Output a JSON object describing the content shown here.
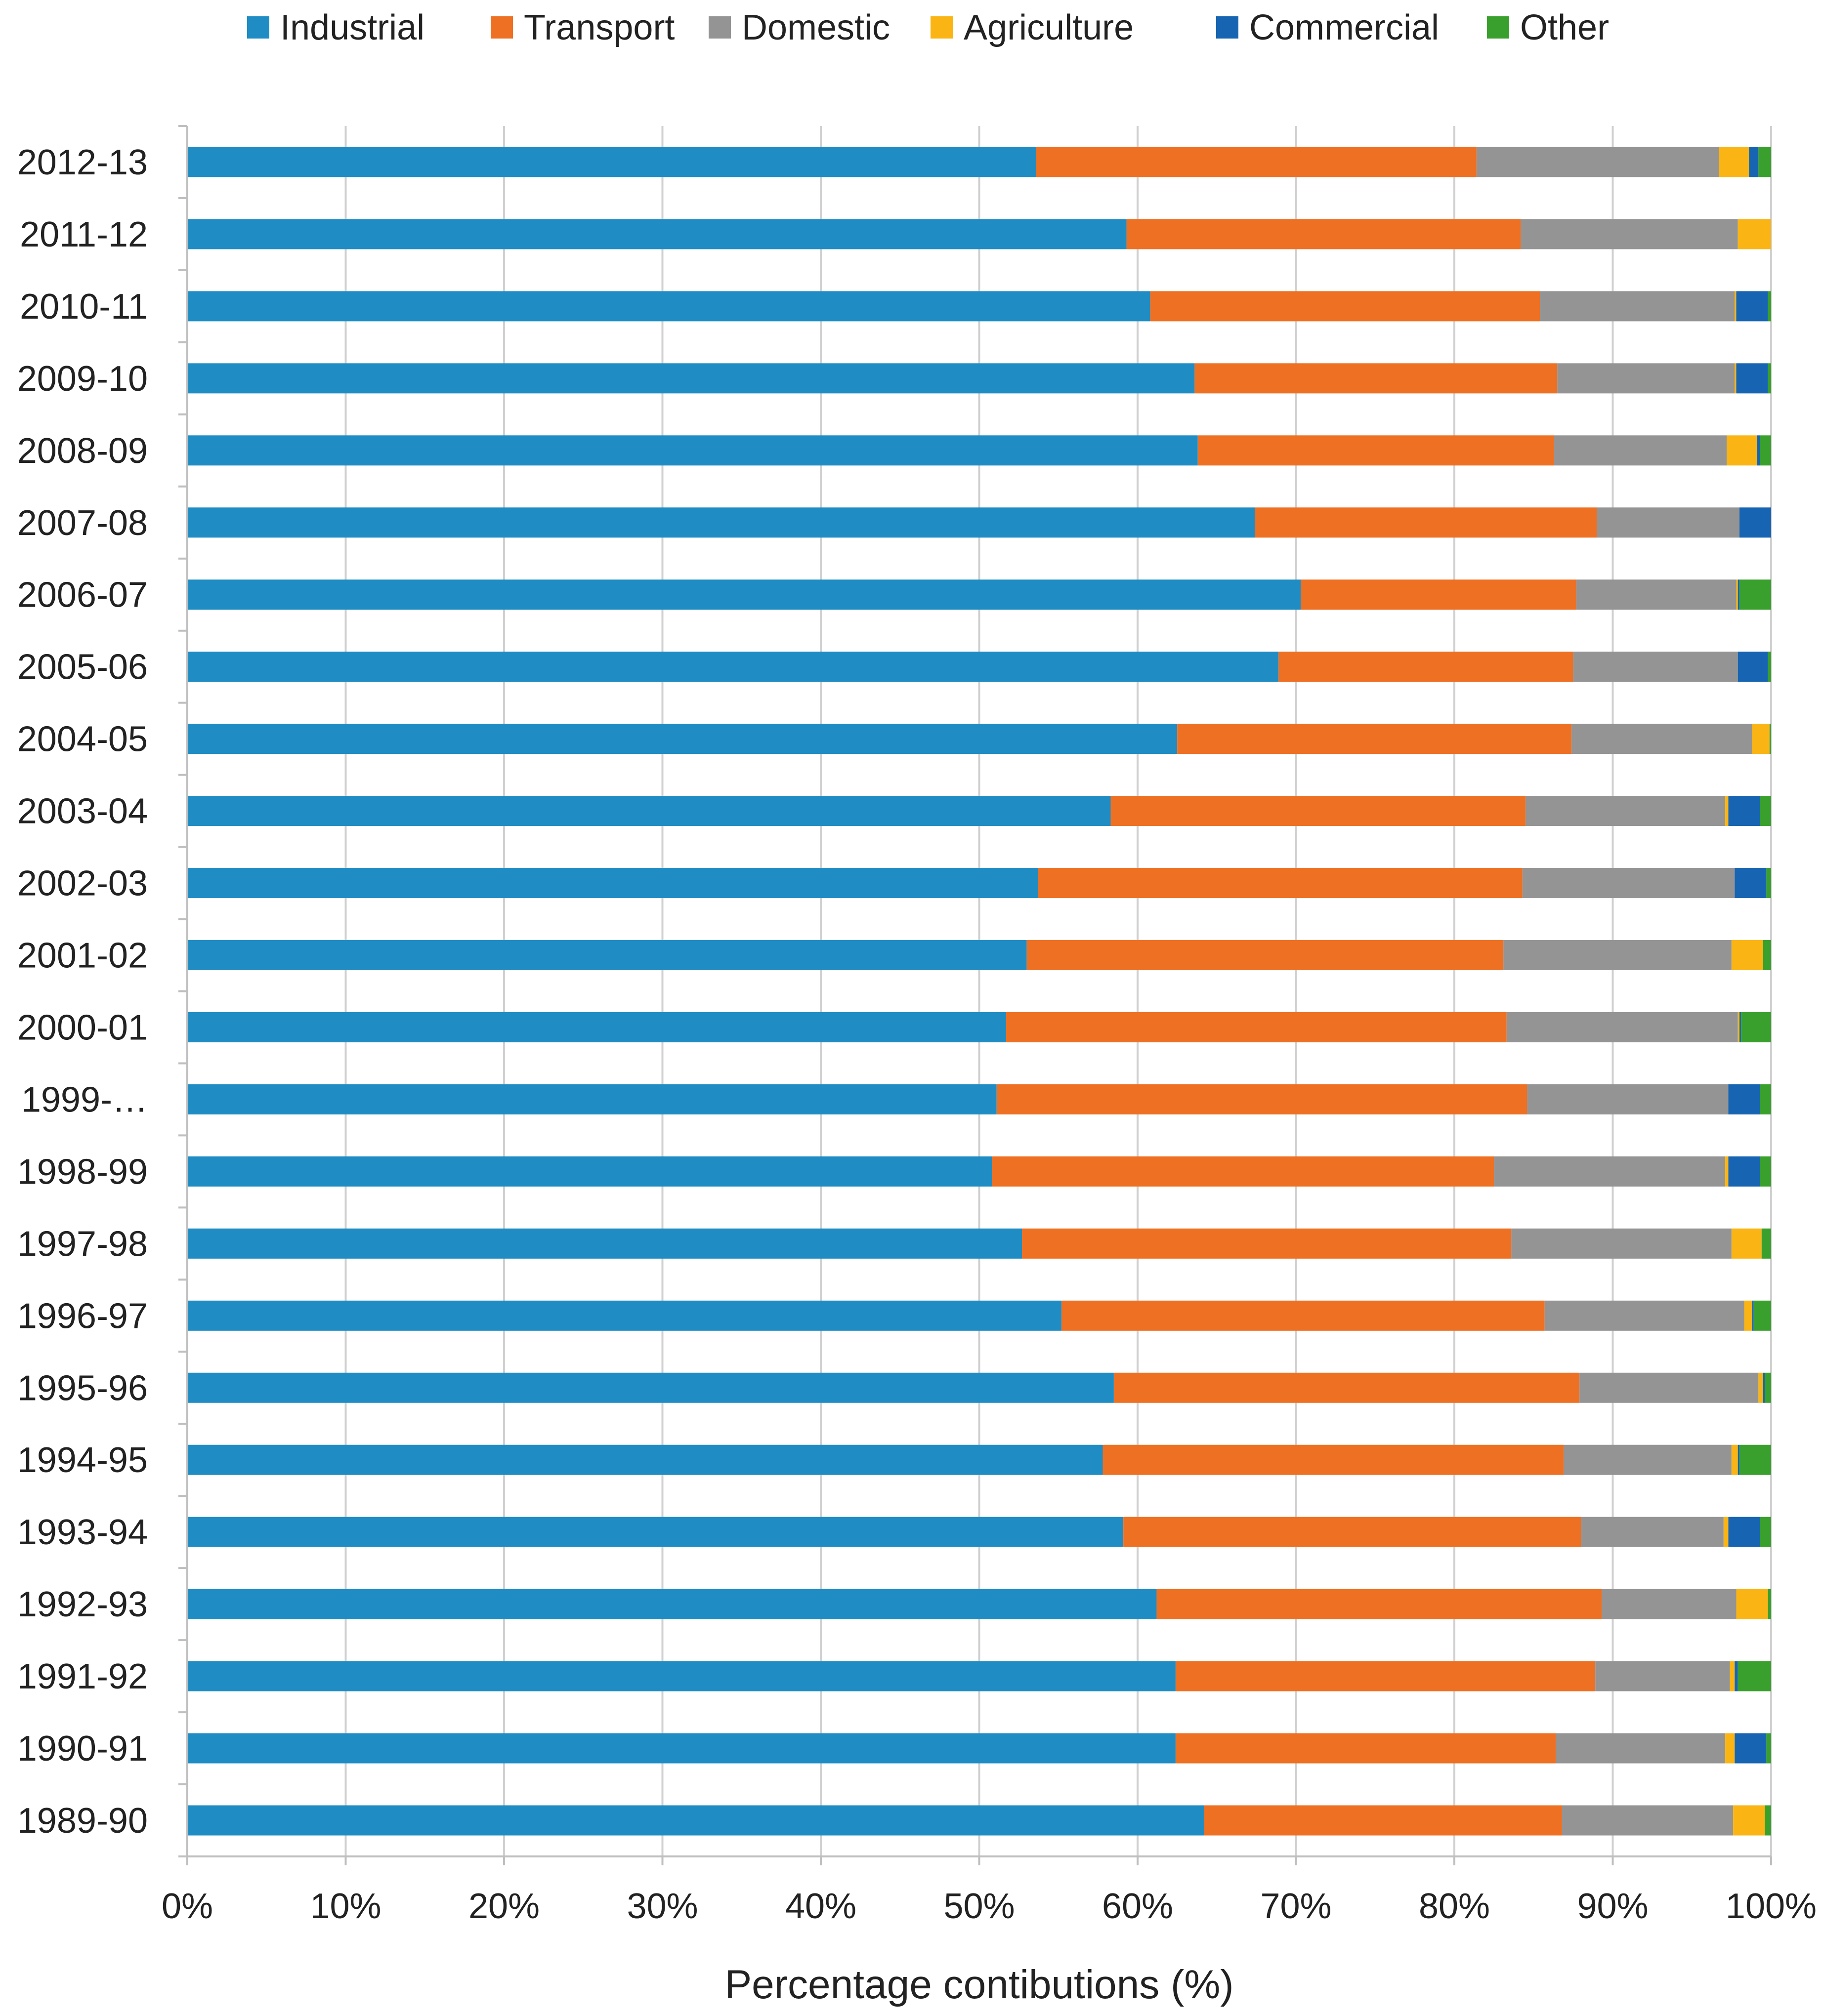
{
  "chart_data": {
    "type": "bar",
    "orientation": "horizontal",
    "stacked": "percent",
    "xlabel": "Percentage contibutions (%)",
    "xlim": [
      0,
      100
    ],
    "x_ticks": [
      "0%",
      "10%",
      "20%",
      "30%",
      "40%",
      "50%",
      "60%",
      "70%",
      "80%",
      "90%",
      "100%"
    ],
    "grid": true,
    "legend_position": "top",
    "categories": [
      "2012-13",
      "2011-12",
      "2010-11",
      "2009-10",
      "2008-09",
      "2007-08",
      "2006-07",
      "2005-06",
      "2004-05",
      "2003-04",
      "2002-03",
      "2001-02",
      "2000-01",
      "1999-…",
      "1998-99",
      "1997-98",
      "1996-97",
      "1995-96",
      "1994-95",
      "1993-94",
      "1992-93",
      "1991-92",
      "1990-91",
      "1989-90"
    ],
    "series": [
      {
        "name": "Industrial",
        "color": "#1F8DC4",
        "values": [
          53.6,
          59.3,
          60.8,
          63.6,
          63.8,
          67.4,
          70.3,
          68.9,
          62.5,
          58.3,
          53.7,
          53.0,
          51.7,
          51.1,
          50.8,
          52.7,
          55.2,
          58.5,
          57.8,
          59.1,
          61.2,
          62.4,
          62.4,
          64.2
        ]
      },
      {
        "name": "Transport",
        "color": "#EE7023",
        "values": [
          27.8,
          24.9,
          24.6,
          22.9,
          22.5,
          21.6,
          17.4,
          18.6,
          24.9,
          26.2,
          30.6,
          30.1,
          31.6,
          33.5,
          31.7,
          30.9,
          30.5,
          29.4,
          29.1,
          28.9,
          28.1,
          26.5,
          24.0,
          22.6
        ]
      },
      {
        "name": "Domestic",
        "color": "#949494",
        "values": [
          15.3,
          13.7,
          12.3,
          11.2,
          10.9,
          9.0,
          10.1,
          10.4,
          11.4,
          12.6,
          13.4,
          14.4,
          14.6,
          12.7,
          14.6,
          13.9,
          12.6,
          11.3,
          10.6,
          9.0,
          8.5,
          8.5,
          10.7,
          10.8
        ]
      },
      {
        "name": "Agriculture",
        "color": "#FAB515",
        "values": [
          1.9,
          2.1,
          0.1,
          0.1,
          1.9,
          0.0,
          0.1,
          0.0,
          1.1,
          0.2,
          0.0,
          2.0,
          0.1,
          0.0,
          0.2,
          1.9,
          0.5,
          0.3,
          0.4,
          0.3,
          2.0,
          0.3,
          0.6,
          2.0
        ]
      },
      {
        "name": "Commercial",
        "color": "#1765B2",
        "values": [
          0.6,
          0.0,
          2.0,
          2.0,
          0.2,
          2.0,
          0.1,
          1.9,
          0.0,
          2.0,
          2.0,
          0.0,
          0.1,
          2.0,
          2.0,
          0.0,
          0.1,
          0.1,
          0.1,
          2.0,
          0.0,
          0.2,
          2.0,
          0.0
        ]
      },
      {
        "name": "Other",
        "color": "#3AA02D",
        "values": [
          0.8,
          0.0,
          0.2,
          0.2,
          0.7,
          0.0,
          2.0,
          0.2,
          0.1,
          0.7,
          0.3,
          0.5,
          1.9,
          0.7,
          0.7,
          0.6,
          1.1,
          0.4,
          2.0,
          0.7,
          0.2,
          2.1,
          0.3,
          0.4
        ]
      }
    ]
  }
}
